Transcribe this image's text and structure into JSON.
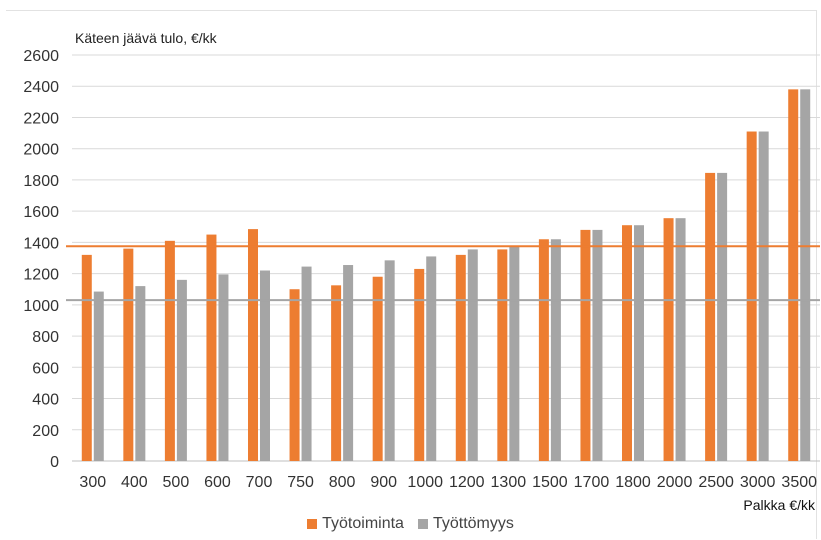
{
  "chart_data": {
    "type": "bar",
    "ylabel": "Käteen jäävä tulo, €/kk",
    "xlabel": "Palkka €/kk",
    "categories": [
      "300",
      "400",
      "500",
      "600",
      "700",
      "750",
      "800",
      "900",
      "1000",
      "1200",
      "1300",
      "1500",
      "1700",
      "1800",
      "2000",
      "2500",
      "3000",
      "3500"
    ],
    "series": [
      {
        "name": "Työtoiminta",
        "color": "#ed7d31",
        "values": [
          1320,
          1360,
          1410,
          1450,
          1485,
          1100,
          1125,
          1180,
          1230,
          1320,
          1355,
          1420,
          1480,
          1510,
          1555,
          1845,
          2110,
          2380
        ]
      },
      {
        "name": "Työttömyys",
        "color": "#a5a5a5",
        "values": [
          1085,
          1120,
          1160,
          1195,
          1220,
          1245,
          1255,
          1285,
          1310,
          1355,
          1375,
          1420,
          1480,
          1510,
          1555,
          1845,
          2110,
          2380
        ]
      }
    ],
    "reference_lines": [
      {
        "value": 1375,
        "color": "#ed7d31"
      },
      {
        "value": 1030,
        "color": "#a5a5a5"
      }
    ],
    "ylim": [
      0,
      2600
    ],
    "yticks": [
      0,
      200,
      400,
      600,
      800,
      1000,
      1200,
      1400,
      1600,
      1800,
      2000,
      2200,
      2400,
      2600
    ],
    "grid": true,
    "legend_position": "bottom"
  }
}
